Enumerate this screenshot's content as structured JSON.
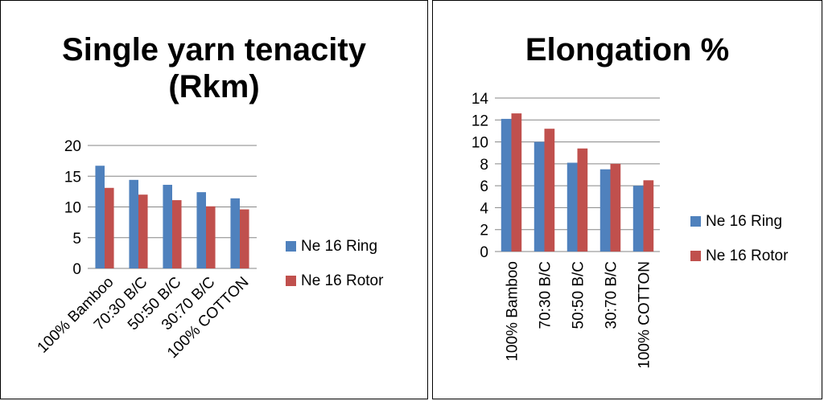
{
  "chart_data": [
    {
      "type": "bar",
      "title": "Single yarn tenacity (Rkm)",
      "xlabel": "",
      "ylabel": "",
      "categories": [
        "100% Bamboo",
        "70:30 B/C",
        "50:50 B/C",
        "30:70 B/C",
        "100% COTTON"
      ],
      "series": [
        {
          "name": "Ne 16 Ring",
          "color": "#4f81bd",
          "values": [
            16.7,
            14.4,
            13.6,
            12.4,
            11.4
          ]
        },
        {
          "name": "Ne 16 Rotor",
          "color": "#c0504d",
          "values": [
            13.1,
            12.0,
            11.1,
            10.1,
            9.6
          ]
        }
      ],
      "ylim": [
        0,
        20
      ],
      "yticks": [
        "0",
        "5",
        "10",
        "15",
        "20"
      ],
      "grid": true,
      "legend": "right"
    },
    {
      "type": "bar",
      "title": "Elongation %",
      "xlabel": "",
      "ylabel": "",
      "categories": [
        "100% Bamboo",
        "70:30 B/C",
        "50:50 B/C",
        "30:70 B/C",
        "100% COTTON"
      ],
      "series": [
        {
          "name": "Ne 16 Ring",
          "color": "#4f81bd",
          "values": [
            12.1,
            10.0,
            8.1,
            7.5,
            6.0
          ]
        },
        {
          "name": "Ne 16 Rotor",
          "color": "#c0504d",
          "values": [
            12.6,
            11.2,
            9.4,
            8.0,
            6.5
          ]
        }
      ],
      "ylim": [
        0,
        14
      ],
      "yticks": [
        "0",
        "2",
        "4",
        "6",
        "8",
        "10",
        "12",
        "14"
      ],
      "grid": true,
      "legend": "right"
    }
  ]
}
